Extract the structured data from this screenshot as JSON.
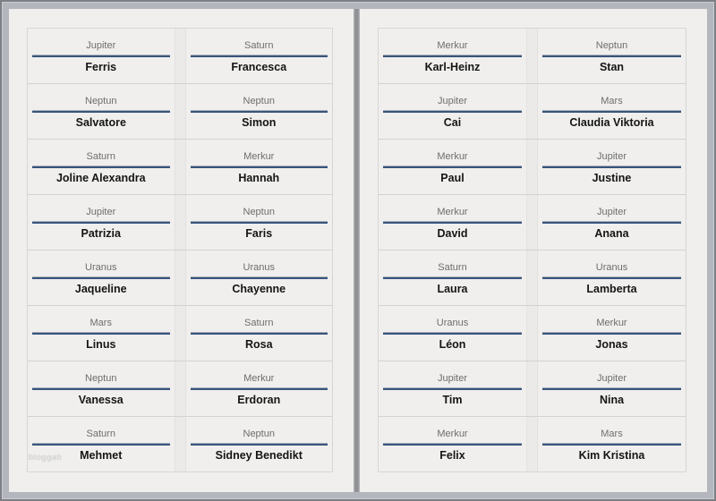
{
  "colors": {
    "canvas_margin": "#b3b7bd",
    "frame_border": "#7d7f83",
    "page_background": "#f0efed",
    "grid_line": "#d2d2d1",
    "fold_band": "#ebeae8",
    "separator_navy": "#38547d",
    "separator_gray": "#a9afb7",
    "planet_text": "#6d6d6d",
    "name_text": "#151515",
    "gutter_dark": "#8f9195"
  },
  "watermark": {
    "text": "bloggab"
  },
  "pages": [
    {
      "cards": [
        {
          "planet": "Jupiter",
          "name": "Ferris"
        },
        {
          "planet": "Saturn",
          "name": "Francesca"
        },
        {
          "planet": "Neptun",
          "name": "Salvatore"
        },
        {
          "planet": "Neptun",
          "name": "Simon"
        },
        {
          "planet": "Saturn",
          "name": "Joline Alexandra"
        },
        {
          "planet": "Merkur",
          "name": "Hannah"
        },
        {
          "planet": "Jupiter",
          "name": "Patrizia"
        },
        {
          "planet": "Neptun",
          "name": "Faris"
        },
        {
          "planet": "Uranus",
          "name": "Jaqueline"
        },
        {
          "planet": "Uranus",
          "name": "Chayenne"
        },
        {
          "planet": "Mars",
          "name": "Linus"
        },
        {
          "planet": "Saturn",
          "name": "Rosa"
        },
        {
          "planet": "Neptun",
          "name": "Vanessa"
        },
        {
          "planet": "Merkur",
          "name": "Erdoran"
        },
        {
          "planet": "Saturn",
          "name": "Mehmet"
        },
        {
          "planet": "Neptun",
          "name": "Sidney Benedikt"
        }
      ]
    },
    {
      "cards": [
        {
          "planet": "Merkur",
          "name": "Karl-Heinz"
        },
        {
          "planet": "Neptun",
          "name": "Stan"
        },
        {
          "planet": "Jupiter",
          "name": "Cai"
        },
        {
          "planet": "Mars",
          "name": "Claudia Viktoria"
        },
        {
          "planet": "Merkur",
          "name": "Paul"
        },
        {
          "planet": "Jupiter",
          "name": "Justine"
        },
        {
          "planet": "Merkur",
          "name": "David"
        },
        {
          "planet": "Jupiter",
          "name": "Anana"
        },
        {
          "planet": "Saturn",
          "name": "Laura"
        },
        {
          "planet": "Uranus",
          "name": "Lamberta"
        },
        {
          "planet": "Uranus",
          "name": "Léon"
        },
        {
          "planet": "Merkur",
          "name": "Jonas"
        },
        {
          "planet": "Jupiter",
          "name": "Tim"
        },
        {
          "planet": "Jupiter",
          "name": "Nina"
        },
        {
          "planet": "Merkur",
          "name": "Felix"
        },
        {
          "planet": "Mars",
          "name": "Kim Kristina"
        }
      ]
    }
  ]
}
